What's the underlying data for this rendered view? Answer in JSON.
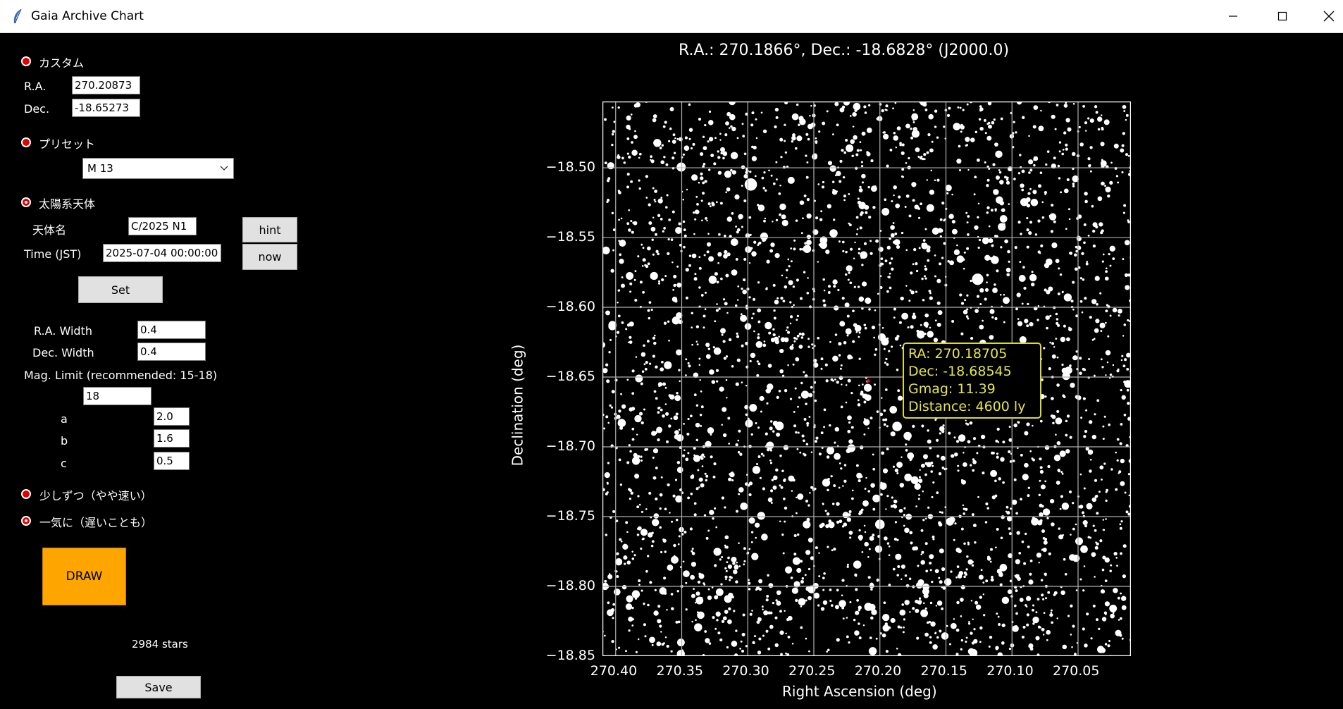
{
  "window": {
    "title": "Gaia Archive Chart",
    "app_icon": "feather-icon",
    "controls": [
      "minimize-icon",
      "maximize-icon",
      "close-icon"
    ]
  },
  "panel": {
    "custom": {
      "label": "カスタム",
      "ra_label": "R.A.",
      "ra_value": "270.20873",
      "dec_label": "Dec.",
      "dec_value": "-18.65273"
    },
    "preset": {
      "label": "プリセット",
      "selected": "M 13"
    },
    "solar": {
      "label": "太陽系天体",
      "name_label": "天体名",
      "name_value": "C/2025 N1",
      "time_label": "Time (JST)",
      "time_value": "2025-07-04 00:00:00",
      "hint_label": "hint",
      "now_label": "now",
      "set_label": "Set"
    },
    "params": {
      "ra_width_label": "R.A. Width",
      "ra_width_value": "0.4",
      "dec_width_label": "Dec. Width",
      "dec_width_value": "0.4",
      "mag_limit_label": "Mag. Limit (recommended: 15-18)",
      "mag_limit_value": "18",
      "a_label": "a",
      "a_value": "2.0",
      "b_label": "b",
      "b_value": "1.6",
      "c_label": "c",
      "c_value": "0.5"
    },
    "mode": {
      "gradual_label": "少しずつ（やや速い）",
      "at_once_label": "一気に（遅いことも）"
    },
    "draw_label": "DRAW",
    "stars_count": "2984 stars",
    "save_label": "Save"
  },
  "chart_data": {
    "type": "scatter",
    "title": "R.A.: 270.1866°, Dec.: -18.6828° (J2000.0)",
    "xlabel": "Right Ascension (deg)",
    "ylabel": "Declination (deg)",
    "xlim": [
      270.41,
      270.01
    ],
    "ylim": [
      -18.85,
      -18.4525
    ],
    "x_ticks": [
      "270.40",
      "270.35",
      "270.30",
      "270.25",
      "270.20",
      "270.15",
      "270.10",
      "270.05"
    ],
    "y_ticks": [
      "-18.50",
      "-18.55",
      "-18.60",
      "-18.65",
      "-18.70",
      "-18.75",
      "-18.80",
      "-18.85"
    ],
    "grid": true,
    "background": "#000000",
    "point_color": "#ffffff",
    "star_count": 2984,
    "marker": {
      "ra": 270.2087,
      "dec": -18.6527,
      "color": "#ff0000"
    },
    "tooltip": {
      "lines": [
        "RA: 270.18705",
        "Dec: -18.68545",
        "Gmag: 11.39",
        "Distance: 4600 ly"
      ],
      "border_color": "#d9d93a",
      "text_color": "#e6e64a"
    },
    "bright_stars": [
      {
        "ra": 270.3685,
        "dec": -18.4822,
        "mag": 11.8
      },
      {
        "ra": 270.3504,
        "dec": -18.4995,
        "mag": 11.5
      },
      {
        "ra": 270.3102,
        "dec": -18.4913,
        "mag": 12.0
      },
      {
        "ra": 270.2977,
        "dec": -18.512,
        "mag": 10.6
      },
      {
        "ra": 270.2735,
        "dec": -18.528,
        "mag": 12.2
      },
      {
        "ra": 270.223,
        "dec": -18.486,
        "mag": 11.9
      },
      {
        "ra": 270.11,
        "dec": -18.4903,
        "mag": 12.0
      },
      {
        "ra": 270.3524,
        "dec": -18.5449,
        "mag": 12.1
      },
      {
        "ra": 270.126,
        "dec": -18.5799,
        "mag": 10.9
      },
      {
        "ra": 270.1662,
        "dec": -18.556,
        "mag": 12.2
      },
      {
        "ra": 270.2832,
        "dec": -18.657,
        "mag": 12.2
      },
      {
        "ra": 270.2761,
        "dec": -18.685,
        "mag": 11.6
      },
      {
        "ra": 270.2832,
        "dec": -18.699,
        "mag": 11.9
      },
      {
        "ra": 270.3846,
        "dec": -18.71,
        "mag": 11.8
      },
      {
        "ra": 270.187,
        "dec": -18.6854,
        "mag": 11.39
      },
      {
        "ra": 270.2,
        "dec": -18.7556,
        "mag": 11.4
      },
      {
        "ra": 270.2027,
        "dec": -18.737,
        "mag": 11.9
      },
      {
        "ra": 270.147,
        "dec": -18.7536,
        "mag": 11.8
      },
      {
        "ra": 270.0827,
        "dec": -18.7536,
        "mag": 11.9
      },
      {
        "ra": 270.0515,
        "dec": -18.7799,
        "mag": 12.0
      },
      {
        "ra": 270.3847,
        "dec": -18.8056,
        "mag": 11.8
      },
      {
        "ra": 270.315,
        "dec": -18.809,
        "mag": 11.9
      },
      {
        "ra": 270.408,
        "dec": -18.8,
        "mag": 12.0
      },
      {
        "ra": 270.105,
        "dec": -18.81,
        "mag": 12.0
      },
      {
        "ra": 270.082,
        "dec": -18.824,
        "mag": 12.2
      }
    ]
  }
}
